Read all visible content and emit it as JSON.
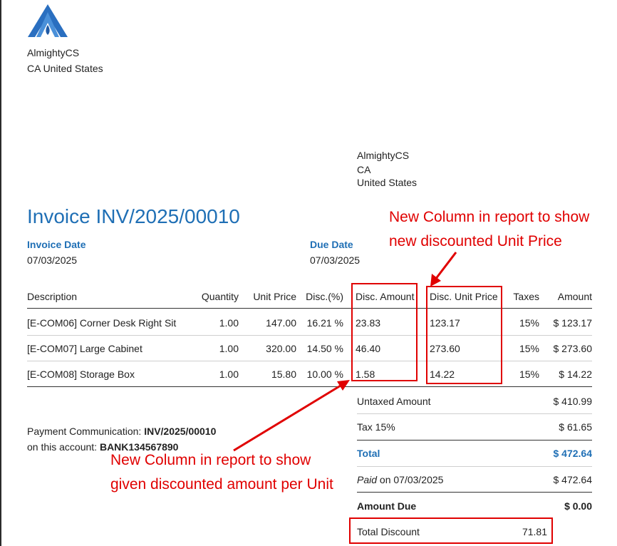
{
  "company": {
    "logo": "company-triangle-logo",
    "name": "AlmightyCS",
    "location": "CA United States"
  },
  "customer": {
    "name": "AlmightyCS",
    "state": "CA",
    "country": "United States"
  },
  "invoice": {
    "title": "Invoice INV/2025/00010",
    "invoice_date_label": "Invoice Date",
    "invoice_date": "07/03/2025",
    "due_date_label": "Due Date",
    "due_date": "07/03/2025"
  },
  "table": {
    "headers": {
      "description": "Description",
      "quantity": "Quantity",
      "unit_price": "Unit Price",
      "disc_pct": "Disc.(%)",
      "disc_amount": "Disc. Amount",
      "disc_unit_price": "Disc. Unit Price",
      "taxes": "Taxes",
      "amount": "Amount"
    },
    "rows": [
      {
        "description": "[E-COM06] Corner Desk Right Sit",
        "quantity": "1.00",
        "unit_price": "147.00",
        "disc_pct": "16.21 %",
        "disc_amount": "23.83",
        "disc_unit_price": "123.17",
        "taxes": "15%",
        "amount": "$ 123.17"
      },
      {
        "description": "[E-COM07] Large Cabinet",
        "quantity": "1.00",
        "unit_price": "320.00",
        "disc_pct": "14.50 %",
        "disc_amount": "46.40",
        "disc_unit_price": "273.60",
        "taxes": "15%",
        "amount": "$ 273.60"
      },
      {
        "description": "[E-COM08] Storage Box",
        "quantity": "1.00",
        "unit_price": "15.80",
        "disc_pct": "10.00 %",
        "disc_amount": "1.58",
        "disc_unit_price": "14.22",
        "taxes": "15%",
        "amount": "$ 14.22"
      }
    ]
  },
  "totals": {
    "untaxed_label": "Untaxed Amount",
    "untaxed_value": "$ 410.99",
    "tax_label": "Tax 15%",
    "tax_value": "$ 61.65",
    "total_label": "Total",
    "total_value": "$ 472.64",
    "paid_prefix": "Paid",
    "paid_on": " on 07/03/2025",
    "paid_value": "$ 472.64",
    "amount_due_label": "Amount Due",
    "amount_due_value": "$ 0.00",
    "total_discount_label": "Total Discount",
    "total_discount_value": "71.81"
  },
  "payment": {
    "communication_label": "Payment Communication: ",
    "communication_value": "INV/2025/00010",
    "account_label": "on this account: ",
    "account_value": "BANK134567890"
  },
  "annotations": {
    "unit_price_note_line1": "New Column in report to show",
    "unit_price_note_line2": "new discounted Unit Price",
    "amount_note_line1": "New Column in report to show",
    "amount_note_line2": "given discounted amount per Unit",
    "color": "#e00000"
  },
  "colors": {
    "accent": "#1f6fb5",
    "annotation": "#e00000"
  }
}
